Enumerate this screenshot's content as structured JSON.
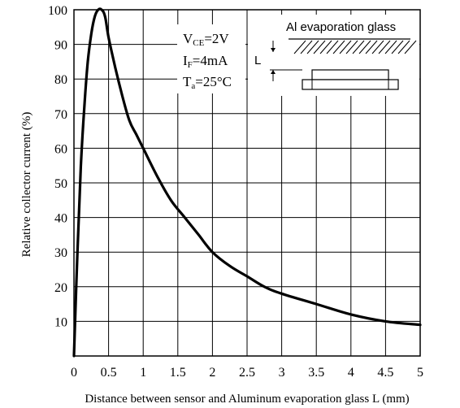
{
  "chart_data": {
    "type": "line",
    "xlabel": "Distance between sensor and Aluminum evaporation glass L (mm)",
    "ylabel": "Relative collector current (%)",
    "xlim": [
      0,
      5
    ],
    "ylim": [
      0,
      100
    ],
    "x_ticks": [
      "0",
      "0.5",
      "1",
      "1.5",
      "2",
      "2.5",
      "3",
      "3.5",
      "4",
      "4.5",
      "5"
    ],
    "y_ticks": [
      "10",
      "20",
      "30",
      "40",
      "50",
      "60",
      "70",
      "80",
      "90",
      "100"
    ],
    "grid": true,
    "series": [
      {
        "x": [
          0,
          0.05,
          0.1,
          0.15,
          0.2,
          0.25,
          0.3,
          0.35,
          0.4,
          0.45,
          0.5,
          0.6,
          0.7,
          0.8,
          0.9,
          1.0,
          1.2,
          1.4,
          1.6,
          1.8,
          2.0,
          2.25,
          2.5,
          2.75,
          3.0,
          3.5,
          4.0,
          4.5,
          5.0
        ],
        "y": [
          0,
          30,
          55,
          72,
          85,
          93,
          98,
          100,
          100,
          98,
          92,
          83,
          75,
          68,
          64,
          60,
          52,
          45,
          40,
          35,
          30,
          26,
          23,
          20,
          18,
          15,
          12,
          10,
          9
        ]
      }
    ]
  },
  "conditions": {
    "vce": {
      "main": "V",
      "sub": "CE",
      "rest": "=2V"
    },
    "if": {
      "main": "I",
      "sub": "F",
      "rest": "=4mA"
    },
    "ta": {
      "main": "T",
      "sub": "a",
      "rest": "=25°C"
    }
  },
  "diagram": {
    "glass_label": "Al evaporation glass",
    "distance_label": "L"
  }
}
